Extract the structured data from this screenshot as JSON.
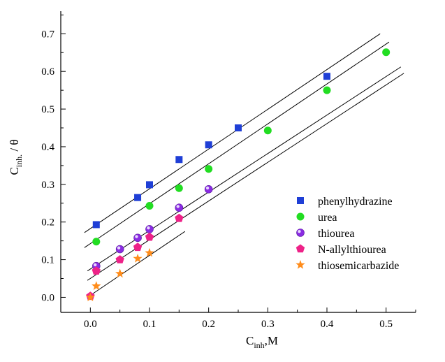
{
  "chart_data": {
    "type": "scatter",
    "xlabel": {
      "main": "C",
      "sub": "inh",
      "suffix": ",M"
    },
    "ylabel": {
      "main": "C",
      "sub": "inh.",
      "suffix": " / θ"
    },
    "xlim": [
      -0.05,
      0.55
    ],
    "ylim": [
      -0.04,
      0.76
    ],
    "xticks": [
      "0.0",
      "0.1",
      "0.2",
      "0.3",
      "0.4",
      "0.5"
    ],
    "xtick_values": [
      0.0,
      0.1,
      0.2,
      0.3,
      0.4,
      0.5
    ],
    "yticks": [
      "0.0",
      "0.1",
      "0.2",
      "0.3",
      "0.4",
      "0.5",
      "0.6",
      "0.7"
    ],
    "ytick_values": [
      0.0,
      0.1,
      0.2,
      0.3,
      0.4,
      0.5,
      0.6,
      0.7
    ],
    "legend_position": "right-middle",
    "series": [
      {
        "name": "phenylhydrazine",
        "marker": "square",
        "color": "#1f3fd6",
        "x": [
          0.01,
          0.08,
          0.1,
          0.15,
          0.2,
          0.25,
          0.4
        ],
        "y": [
          0.193,
          0.265,
          0.299,
          0.366,
          0.405,
          0.45,
          0.587
        ],
        "fit": {
          "x": [
            -0.01,
            0.49
          ],
          "y": [
            0.172,
            0.7
          ]
        }
      },
      {
        "name": "urea",
        "marker": "circle",
        "color": "#22dd22",
        "x": [
          0.01,
          0.1,
          0.15,
          0.2,
          0.3,
          0.4,
          0.5
        ],
        "y": [
          0.148,
          0.243,
          0.29,
          0.341,
          0.443,
          0.55,
          0.651
        ],
        "fit": {
          "x": [
            -0.01,
            0.505
          ],
          "y": [
            0.132,
            0.678
          ]
        }
      },
      {
        "name": "thiourea",
        "marker": "sphere",
        "color": "#8a2be2",
        "x": [
          0.01,
          0.05,
          0.08,
          0.1,
          0.15,
          0.2
        ],
        "y": [
          0.083,
          0.128,
          0.158,
          0.181,
          0.238,
          0.287
        ],
        "fit": {
          "x": [
            -0.005,
            0.525
          ],
          "y": [
            0.07,
            0.612
          ]
        }
      },
      {
        "name": "N-allylthiourea",
        "marker": "pentagon",
        "color": "#ee2288",
        "x": [
          0.0,
          0.01,
          0.05,
          0.08,
          0.1,
          0.15
        ],
        "y": [
          0.003,
          0.07,
          0.1,
          0.133,
          0.16,
          0.21
        ],
        "fit": {
          "x": [
            -0.005,
            0.53
          ],
          "y": [
            0.045,
            0.595
          ]
        }
      },
      {
        "name": "thiosemicarbazide",
        "marker": "star",
        "color": "#ff8c1a",
        "x": [
          0.0,
          0.01,
          0.05,
          0.08,
          0.1
        ],
        "y": [
          0.0,
          0.03,
          0.063,
          0.103,
          0.118
        ],
        "fit": {
          "x": [
            -0.005,
            0.16
          ],
          "y": [
            0.0,
            0.175
          ]
        }
      }
    ]
  }
}
